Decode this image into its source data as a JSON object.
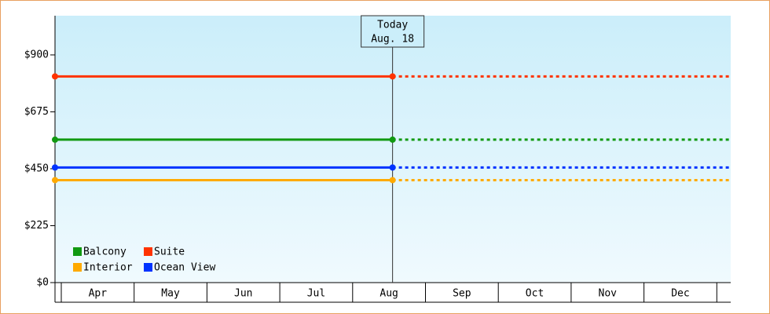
{
  "chart_data": {
    "type": "price-line",
    "categories": [
      "Apr",
      "May",
      "Jun",
      "Jul",
      "Aug",
      "Sep",
      "Oct",
      "Nov",
      "Dec"
    ],
    "today": {
      "label": "Today",
      "date": "Aug. 18"
    },
    "series": [
      {
        "name": "Balcony",
        "color": "#119911",
        "value": 565
      },
      {
        "name": "Suite",
        "color": "#ff3300",
        "value": 815
      },
      {
        "name": "Interior",
        "color": "#ffaa00",
        "value": 405
      },
      {
        "name": "Ocean View",
        "color": "#0033ff",
        "value": 455
      }
    ],
    "ylim": [
      0,
      1055
    ],
    "yticks": [
      {
        "value": 0,
        "label": "$0"
      },
      {
        "value": 225,
        "label": "$225"
      },
      {
        "value": 450,
        "label": "$450"
      },
      {
        "value": 675,
        "label": "$675"
      },
      {
        "value": 900,
        "label": "$900"
      }
    ]
  }
}
